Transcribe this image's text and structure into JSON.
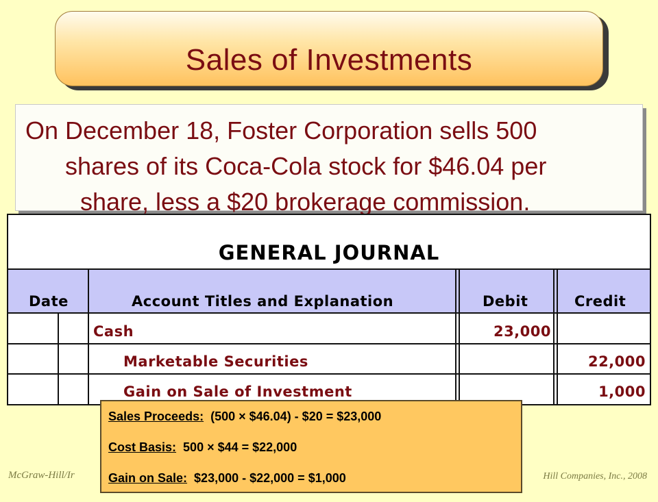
{
  "title": "Sales of Investments",
  "description": [
    "On December 18, Foster Corporation sells 500",
    "shares of its Coca-Cola stock for $46.04 per",
    "share, less a $20 brokerage commission."
  ],
  "journal": {
    "title": "GENERAL JOURNAL",
    "headers": {
      "date": "Date",
      "account": "Account Titles and Explanation",
      "debit": "Debit",
      "credit": "Credit"
    },
    "rows": [
      {
        "account": "Cash",
        "debit": "23,000",
        "credit": ""
      },
      {
        "account": "Marketable Securities",
        "debit": "",
        "credit": "22,000"
      },
      {
        "account": "Gain on Sale of Investment",
        "debit": "",
        "credit": "1,000"
      }
    ]
  },
  "calc": [
    {
      "label": "Sales Proceeds:",
      "text": "(500 × $46.04) - $20 = $23,000"
    },
    {
      "label": "Cost Basis:",
      "text": "500 × $44 = $22,000"
    },
    {
      "label": "Gain on Sale:",
      "text": "$23,000 - $22,000 = $1,000"
    }
  ],
  "footer": {
    "left": "McGraw-Hill/Ir",
    "right": "Hill Companies, Inc., 2008"
  }
}
